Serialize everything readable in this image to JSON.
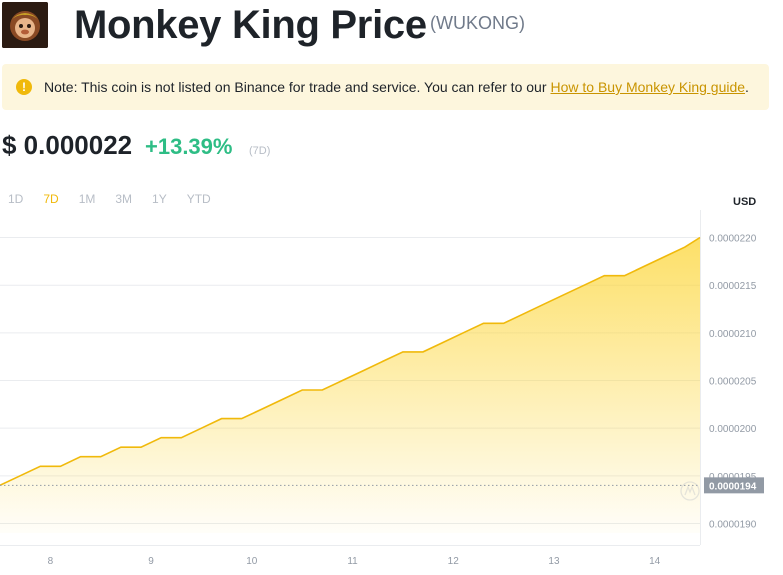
{
  "header": {
    "title": "Monkey King Price",
    "symbol": "(WUKONG)",
    "logo_icon": "monkey-king-logo-icon"
  },
  "notice": {
    "icon": "warning-icon",
    "text": "Note: This coin is not listed on Binance for trade and service. You can refer to our",
    "link_text": "How to Buy Monkey King guide",
    "suffix": "."
  },
  "price": {
    "value": "$ 0.000022",
    "change": "+13.39%",
    "period": "(7D)"
  },
  "ranges": [
    "1D",
    "7D",
    "1M",
    "3M",
    "1Y",
    "YTD"
  ],
  "active_range": "7D",
  "chart_data": {
    "type": "area",
    "currency": "USD",
    "x_ticks": [
      "8",
      "9",
      "10",
      "11",
      "12",
      "13",
      "14"
    ],
    "y_ticks": [
      "0.0000220",
      "0.0000215",
      "0.0000210",
      "0.0000205",
      "0.0000200",
      "0.0000195",
      "0.0000190"
    ],
    "ylim": [
      1.89e-05,
      2.21e-05
    ],
    "xlim": [
      7.5,
      14.45
    ],
    "current_value_label": "0.0000194",
    "current_value": 1.94e-05,
    "series": [
      {
        "x": [
          7.5,
          7.7,
          7.9,
          8.1,
          8.3,
          8.5,
          8.7,
          8.9,
          9.1,
          9.3,
          9.5,
          9.7,
          9.9,
          10.1,
          10.3,
          10.5,
          10.7,
          10.9,
          11.1,
          11.3,
          11.5,
          11.7,
          11.9,
          12.1,
          12.3,
          12.5,
          12.7,
          12.9,
          13.1,
          13.3,
          13.5,
          13.7,
          13.9,
          14.1,
          14.3,
          14.45
        ],
        "y": [
          1.94e-05,
          1.95e-05,
          1.96e-05,
          1.96e-05,
          1.97e-05,
          1.97e-05,
          1.98e-05,
          1.98e-05,
          1.99e-05,
          1.99e-05,
          2e-05,
          2.01e-05,
          2.01e-05,
          2.02e-05,
          2.03e-05,
          2.04e-05,
          2.04e-05,
          2.05e-05,
          2.06e-05,
          2.07e-05,
          2.08e-05,
          2.08e-05,
          2.09e-05,
          2.1e-05,
          2.11e-05,
          2.11e-05,
          2.12e-05,
          2.13e-05,
          2.14e-05,
          2.15e-05,
          2.16e-05,
          2.16e-05,
          2.17e-05,
          2.18e-05,
          2.19e-05,
          2.2e-05
        ]
      }
    ]
  },
  "colors": {
    "accent": "#f0b90b",
    "positive": "#2ebd85",
    "line": "#f0b90b",
    "tag_bg": "#929aa5"
  }
}
